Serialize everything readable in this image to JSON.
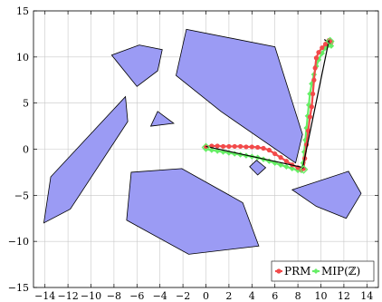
{
  "chart_data": {
    "type": "scatter",
    "xlim": [
      -15,
      15
    ],
    "ylim": [
      -15,
      15
    ],
    "x_ticks": [
      -14,
      -12,
      -10,
      -8,
      -6,
      -4,
      -2,
      0,
      2,
      4,
      6,
      8,
      10,
      12,
      14
    ],
    "x_tick_labels": [
      "−14",
      "−12",
      "−10",
      "−8",
      "−6",
      "−4",
      "−2",
      "0",
      "2",
      "4",
      "6",
      "8",
      "10",
      "12",
      "14"
    ],
    "y_ticks": [
      -15,
      -10,
      -5,
      0,
      5,
      10,
      15
    ],
    "y_tick_labels": [
      "−15",
      "−10",
      "−5",
      "0",
      "5",
      "10",
      "15"
    ],
    "grid": true,
    "legend_position": "bottom-right",
    "colors": {
      "obstacle_fill": "#9b9bf4",
      "obstacle_edge": "#000000",
      "prm": "#f24a4a",
      "mip": "#66ee66",
      "segment": "#000000"
    },
    "obstacles": [
      [
        [
          -14.1,
          -8.0
        ],
        [
          -13.5,
          -3.0
        ],
        [
          -7.0,
          5.7
        ],
        [
          -6.8,
          3.0
        ],
        [
          -11.8,
          -6.5
        ]
      ],
      [
        [
          -8.2,
          10.2
        ],
        [
          -5.8,
          11.3
        ],
        [
          -3.8,
          10.8
        ],
        [
          -4.2,
          8.5
        ],
        [
          -6.0,
          6.8
        ]
      ],
      [
        [
          -4.8,
          2.5
        ],
        [
          -4.2,
          4.1
        ],
        [
          -2.8,
          2.8
        ]
      ],
      [
        [
          -2.6,
          8.0
        ],
        [
          -1.7,
          13.0
        ],
        [
          6.0,
          11.1
        ],
        [
          8.4,
          1.6
        ],
        [
          7.8,
          -1.5
        ],
        [
          1.3,
          4.1
        ]
      ],
      [
        [
          3.8,
          -1.9
        ],
        [
          4.4,
          -1.2
        ],
        [
          5.2,
          -2.0
        ],
        [
          4.5,
          -2.8
        ]
      ],
      [
        [
          -6.5,
          -2.5
        ],
        [
          -2.1,
          -2.1
        ],
        [
          3.2,
          -5.8
        ],
        [
          4.6,
          -10.5
        ],
        [
          -1.5,
          -11.4
        ],
        [
          -6.9,
          -7.7
        ]
      ],
      [
        [
          7.5,
          -4.4
        ],
        [
          12.4,
          -2.4
        ],
        [
          13.5,
          -4.8
        ],
        [
          12.2,
          -7.5
        ],
        [
          9.6,
          -6.2
        ]
      ]
    ],
    "segments": [
      [
        [
          0.0,
          0.3
        ],
        [
          8.5,
          -2.0
        ]
      ],
      [
        [
          8.4,
          -2.1
        ],
        [
          10.7,
          11.8
        ]
      ],
      [
        [
          10.3,
          11.9
        ],
        [
          10.8,
          11.4
        ]
      ]
    ],
    "series": [
      {
        "name": "PRM",
        "marker": "circle",
        "points": [
          [
            0.0,
            0.3
          ],
          [
            0.5,
            0.35
          ],
          [
            1.0,
            0.35
          ],
          [
            1.5,
            0.3
          ],
          [
            2.0,
            0.3
          ],
          [
            2.5,
            0.3
          ],
          [
            3.0,
            0.3
          ],
          [
            3.5,
            0.25
          ],
          [
            4.0,
            0.25
          ],
          [
            4.5,
            0.2
          ],
          [
            5.0,
            0.1
          ],
          [
            5.5,
            -0.1
          ],
          [
            6.0,
            -0.5
          ],
          [
            6.5,
            -0.9
          ],
          [
            7.0,
            -1.3
          ],
          [
            7.5,
            -1.7
          ],
          [
            8.0,
            -2.0
          ],
          [
            8.3,
            -2.2
          ],
          [
            8.5,
            -2.1
          ],
          [
            8.6,
            -1.0
          ],
          [
            8.75,
            0.5
          ],
          [
            8.9,
            2.0
          ],
          [
            9.05,
            3.5
          ],
          [
            9.2,
            4.6
          ],
          [
            9.3,
            6.0
          ],
          [
            9.4,
            7.5
          ],
          [
            9.5,
            8.8
          ],
          [
            9.6,
            9.9
          ],
          [
            9.8,
            10.5
          ],
          [
            10.1,
            11.0
          ],
          [
            10.4,
            11.4
          ],
          [
            10.7,
            11.8
          ],
          [
            10.9,
            11.6
          ]
        ]
      },
      {
        "name": "MIP(ℤ)",
        "marker": "diamond",
        "points": [
          [
            0.0,
            0.0
          ],
          [
            0.5,
            -0.1
          ],
          [
            1.0,
            -0.2
          ],
          [
            1.5,
            -0.3
          ],
          [
            2.0,
            -0.4
          ],
          [
            2.5,
            -0.5
          ],
          [
            3.0,
            -0.6
          ],
          [
            3.5,
            -0.7
          ],
          [
            4.0,
            -0.8
          ],
          [
            4.5,
            -0.9
          ],
          [
            5.0,
            -1.1
          ],
          [
            5.5,
            -1.3
          ],
          [
            6.0,
            -1.5
          ],
          [
            6.5,
            -1.7
          ],
          [
            7.0,
            -1.9
          ],
          [
            7.5,
            -2.1
          ],
          [
            8.0,
            -2.3
          ],
          [
            8.3,
            -2.3
          ],
          [
            8.45,
            -1.5
          ],
          [
            8.55,
            -0.3
          ],
          [
            8.65,
            1.0
          ],
          [
            8.75,
            2.3
          ],
          [
            8.85,
            3.6
          ],
          [
            8.95,
            4.8
          ],
          [
            9.05,
            6.0
          ],
          [
            9.2,
            7.1
          ],
          [
            9.4,
            8.1
          ],
          [
            9.6,
            9.0
          ],
          [
            9.8,
            9.7
          ],
          [
            10.1,
            10.4
          ],
          [
            10.4,
            11.0
          ],
          [
            10.7,
            11.3
          ],
          [
            10.9,
            11.2
          ]
        ]
      }
    ]
  }
}
